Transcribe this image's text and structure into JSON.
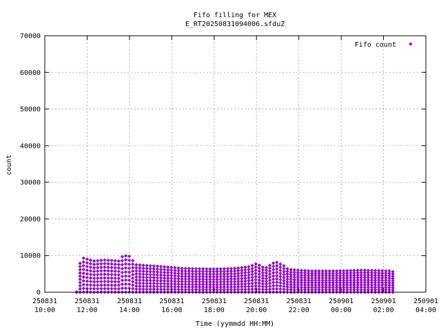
{
  "chart_data": {
    "type": "scatter",
    "title_line1": "Fifo filling for MEX",
    "title_line2": "E_RT20250831094006.sfduZ",
    "xlabel": "Time (yymmdd HH:MM)",
    "ylabel": "count",
    "legend_label": "Fifo count",
    "legend_position": "top-right",
    "grid": true,
    "series_color": "#9400d3",
    "xlim_hours": [
      10,
      28
    ],
    "ylim": [
      0,
      70000
    ],
    "y_ticks": [
      0,
      10000,
      20000,
      30000,
      40000,
      50000,
      60000,
      70000
    ],
    "x_ticks": [
      {
        "hour": 10,
        "date": "250831",
        "time": "10:00"
      },
      {
        "hour": 12,
        "date": "250831",
        "time": "12:00"
      },
      {
        "hour": 14,
        "date": "250831",
        "time": "14:00"
      },
      {
        "hour": 16,
        "date": "250831",
        "time": "16:00"
      },
      {
        "hour": 18,
        "date": "250831",
        "time": "18:00"
      },
      {
        "hour": 20,
        "date": "250831",
        "time": "20:00"
      },
      {
        "hour": 22,
        "date": "250831",
        "time": "22:00"
      },
      {
        "hour": 24,
        "date": "250901",
        "time": "00:00"
      },
      {
        "hour": 26,
        "date": "250901",
        "time": "02:00"
      },
      {
        "hour": 28,
        "date": "250901",
        "time": "04:00"
      }
    ],
    "series": [
      {
        "name": "Fifo count",
        "x_start": 11.5,
        "x_end": 26.5,
        "x_step": 0.166,
        "levels": 9,
        "envelope": [
          [
            11.5,
            0
          ],
          [
            11.7,
            9500
          ],
          [
            12.3,
            8500
          ],
          [
            12.8,
            8800
          ],
          [
            13.5,
            8500
          ],
          [
            13.7,
            10000
          ],
          [
            14.0,
            9800
          ],
          [
            14.3,
            7500
          ],
          [
            15.5,
            7000
          ],
          [
            16.5,
            6500
          ],
          [
            18.0,
            6300
          ],
          [
            19.0,
            6500
          ],
          [
            19.7,
            7000
          ],
          [
            20.0,
            7800
          ],
          [
            20.4,
            6500
          ],
          [
            20.9,
            8300
          ],
          [
            21.3,
            7200
          ],
          [
            21.5,
            6200
          ],
          [
            22.5,
            5800
          ],
          [
            24.0,
            5800
          ],
          [
            25.0,
            6000
          ],
          [
            26.3,
            5800
          ],
          [
            26.5,
            5500
          ]
        ]
      }
    ]
  }
}
